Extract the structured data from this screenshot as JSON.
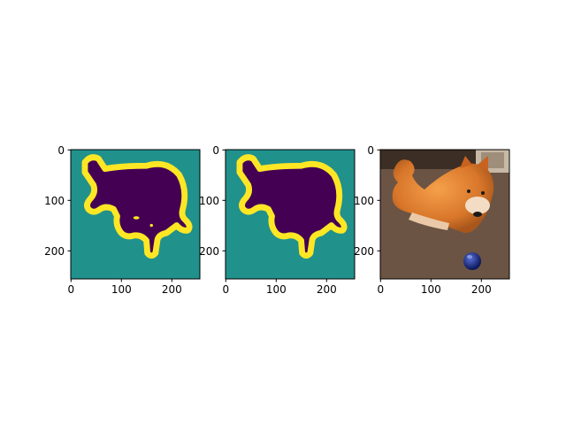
{
  "figure": {
    "background": "#ffffff",
    "colormap": {
      "boundary": "#fde725",
      "background_region": "#21918c",
      "foreground_region": "#440154"
    }
  },
  "chart_data": [
    {
      "type": "heatmap",
      "content": "segmentation mask with yellow boundary band (includes small island artifacts)",
      "xlim": [
        0,
        256
      ],
      "ylim": [
        256,
        0
      ],
      "xticks": [
        0,
        100,
        200
      ],
      "yticks": [
        0,
        100,
        200
      ],
      "xtick_labels": [
        "0",
        "100",
        "200"
      ],
      "ytick_labels": [
        "0",
        "100",
        "200"
      ],
      "colors": {
        "outside": "#21918c",
        "inside": "#440154",
        "boundary": "#fde725"
      }
    },
    {
      "type": "heatmap",
      "content": "cleaned segmentation mask with yellow boundary band",
      "xlim": [
        0,
        256
      ],
      "ylim": [
        256,
        0
      ],
      "xticks": [
        0,
        100,
        200
      ],
      "yticks": [
        0,
        100,
        200
      ],
      "xtick_labels": [
        "0",
        "100",
        "200"
      ],
      "ytick_labels": [
        "0",
        "100",
        "200"
      ],
      "colors": {
        "outside": "#21918c",
        "inside": "#440154",
        "boundary": "#fde725"
      }
    },
    {
      "type": "heatmap",
      "content": "photo of a shiba inu dog lying on carpet next to a blue ball",
      "xlim": [
        0,
        256
      ],
      "ylim": [
        256,
        0
      ],
      "xticks": [
        0,
        100,
        200
      ],
      "yticks": [
        0,
        100,
        200
      ],
      "xtick_labels": [
        "0",
        "100",
        "200"
      ],
      "ytick_labels": [
        "0",
        "100",
        "200"
      ]
    }
  ]
}
